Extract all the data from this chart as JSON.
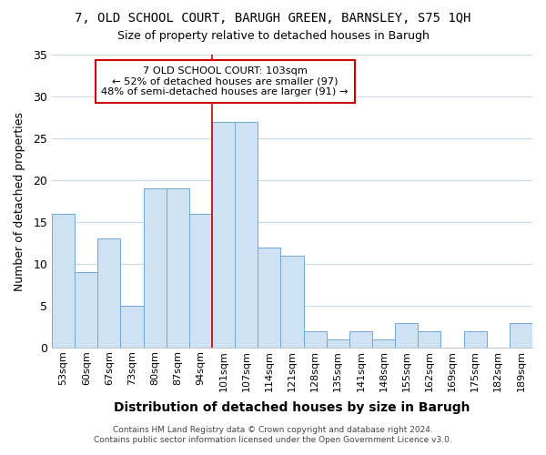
{
  "title": "7, OLD SCHOOL COURT, BARUGH GREEN, BARNSLEY, S75 1QH",
  "subtitle": "Size of property relative to detached houses in Barugh",
  "xlabel": "Distribution of detached houses by size in Barugh",
  "ylabel": "Number of detached properties",
  "categories": [
    "53sqm",
    "60sqm",
    "67sqm",
    "73sqm",
    "80sqm",
    "87sqm",
    "94sqm",
    "101sqm",
    "107sqm",
    "114sqm",
    "121sqm",
    "128sqm",
    "135sqm",
    "141sqm",
    "148sqm",
    "155sqm",
    "162sqm",
    "169sqm",
    "175sqm",
    "182sqm",
    "189sqm"
  ],
  "values": [
    16,
    9,
    13,
    5,
    19,
    19,
    16,
    27,
    27,
    12,
    11,
    2,
    1,
    2,
    1,
    3,
    2,
    0,
    2,
    0,
    3
  ],
  "bar_color": "#cfe2f3",
  "bar_edge_color": "#6fa8d6",
  "highlight_index": 7,
  "highlight_line_color": "#cc0000",
  "ylim": [
    0,
    35
  ],
  "yticks": [
    0,
    5,
    10,
    15,
    20,
    25,
    30,
    35
  ],
  "annotation_title": "7 OLD SCHOOL COURT: 103sqm",
  "annotation_line1": "← 52% of detached houses are smaller (97)",
  "annotation_line2": "48% of semi-detached houses are larger (91) →",
  "annotation_box_color": "#ffffff",
  "annotation_box_edge": "#cc0000",
  "footer1": "Contains HM Land Registry data © Crown copyright and database right 2024.",
  "footer2": "Contains public sector information licensed under the Open Government Licence v3.0.",
  "background_color": "#ffffff",
  "grid_color": "#c8d8e8"
}
